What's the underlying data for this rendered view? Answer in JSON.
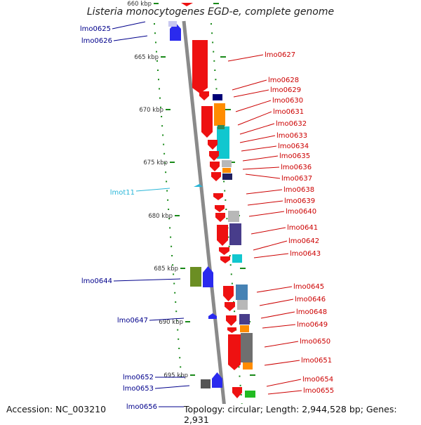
{
  "title": "Listeria monocytogenes EGD-e, complete genome",
  "footer": {
    "accession": "Accession: NC_003210",
    "summary": "Topology: circular; Length: 2,944,528 bp; Genes: 2,931"
  },
  "colors": {
    "backbone": "#888888",
    "tick": "#1a8a1a",
    "label_forward": "#00008b",
    "label_reverse": "#cc0000",
    "label_rna": "#29b6d8"
  },
  "ruler": [
    {
      "label": "660 kbp"
    },
    {
      "label": "665 kbp"
    },
    {
      "label": "670 kbp"
    },
    {
      "label": "675 kbp"
    },
    {
      "label": "680 kbp"
    },
    {
      "label": "685 kbp"
    },
    {
      "label": "690 kbp"
    },
    {
      "label": "695 kbp"
    }
  ],
  "genes": {
    "forward": [
      "lmo0625",
      "lmo0626",
      "lmo0644",
      "lmo0647",
      "lmo0652",
      "lmo0653",
      "lmo0656"
    ],
    "rna": [
      "lmot11"
    ],
    "reverse": [
      "lmo0627",
      "lmo0628",
      "lmo0629",
      "lmo0630",
      "lmo0631",
      "lmo0632",
      "lmo0633",
      "lmo0634",
      "lmo0635",
      "lmo0636",
      "lmo0637",
      "lmo0638",
      "lmo0639",
      "lmo0640",
      "lmo0641",
      "lmo0642",
      "lmo0643",
      "lmo0645",
      "lmo0646",
      "lmo0648",
      "lmo0649",
      "lmo0650",
      "lmo0651",
      "lmo0654",
      "lmo0655"
    ]
  }
}
